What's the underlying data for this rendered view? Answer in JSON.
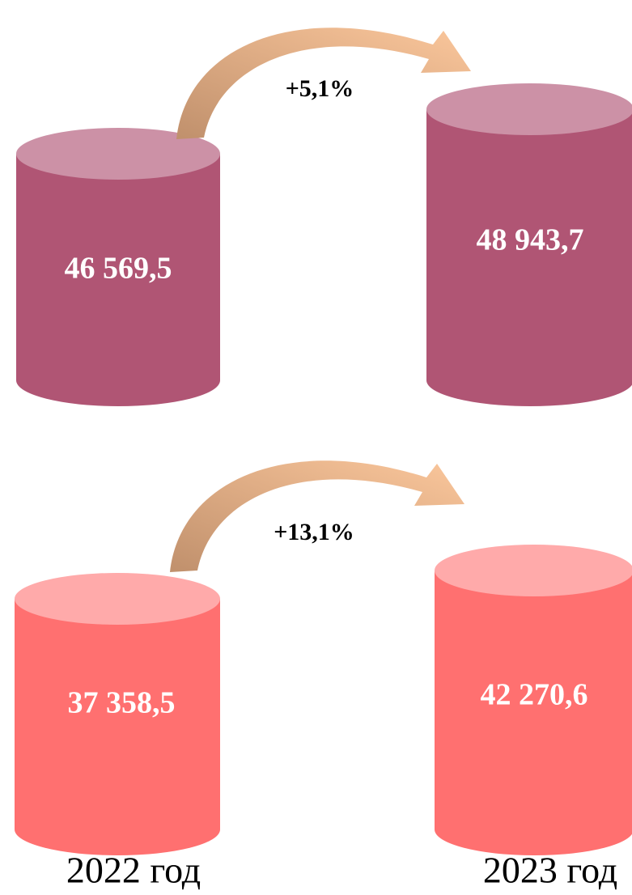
{
  "rows": [
    {
      "change": "+5,1%",
      "values": [
        "46 569,5",
        "48 943,7"
      ]
    },
    {
      "change": "+13,1%",
      "values": [
        "37 358,5",
        "42 270,6"
      ]
    }
  ],
  "years": [
    "2022 год",
    "2023 год"
  ]
}
